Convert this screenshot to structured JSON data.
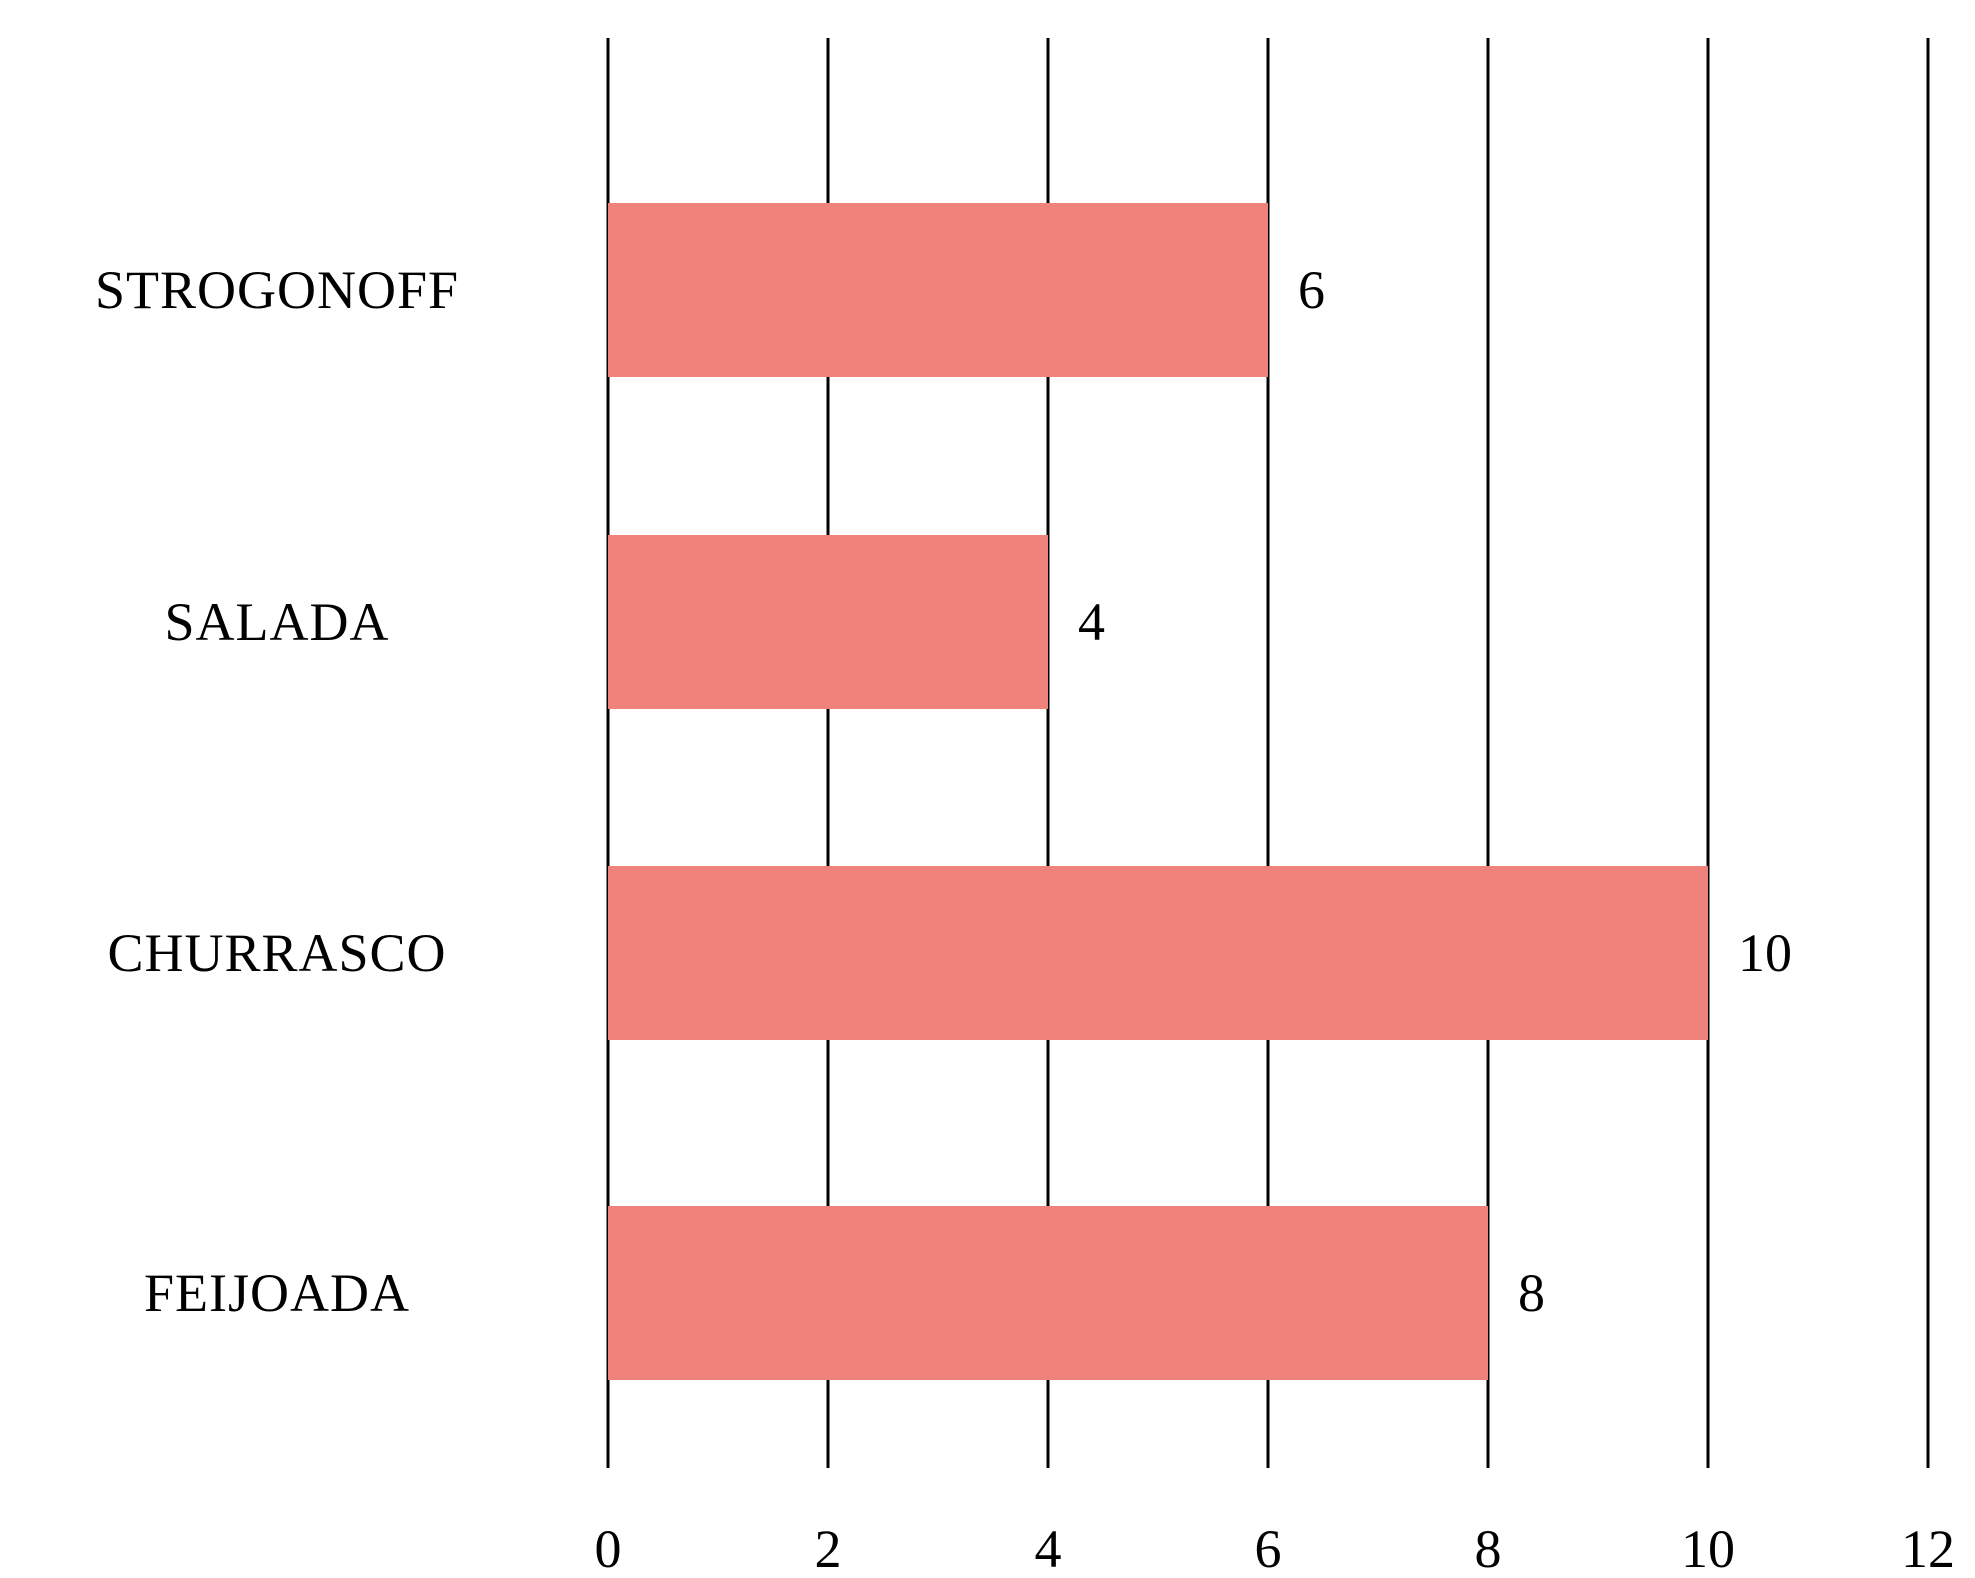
{
  "chart_data": {
    "type": "bar",
    "orientation": "horizontal",
    "categories": [
      "STROGONOFF",
      "SALADA",
      "CHURRASCO",
      "FEIJOADA"
    ],
    "values": [
      6,
      4,
      10,
      8
    ],
    "data_labels": [
      "6",
      "4",
      "10",
      "8"
    ],
    "title": "",
    "xlabel": "",
    "ylabel": "",
    "xlim": [
      0,
      12
    ],
    "xticks": [
      0,
      2,
      4,
      6,
      8,
      10,
      12
    ],
    "tick_labels": [
      "0",
      "2",
      "4",
      "6",
      "8",
      "10",
      "12"
    ],
    "grid": "vertical",
    "legend": "none",
    "bar_color": "#ef837b",
    "grid_color": "#000000",
    "text_color": "#000000"
  }
}
